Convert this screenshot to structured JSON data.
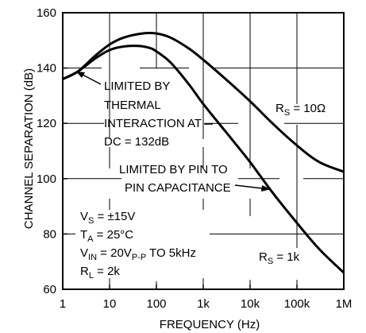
{
  "chart_data": {
    "type": "line",
    "xlabel": "FREQUENCY (Hz)",
    "ylabel": "CHANNEL SEPARATION (dB)",
    "x_scale": "log",
    "xlim": [
      1,
      1000000
    ],
    "ylim": [
      60,
      160
    ],
    "grid": true,
    "x_ticks": [
      {
        "value": 1,
        "label": "1"
      },
      {
        "value": 10,
        "label": "10"
      },
      {
        "value": 100,
        "label": "100"
      },
      {
        "value": 1000,
        "label": "1k"
      },
      {
        "value": 10000,
        "label": "10k"
      },
      {
        "value": 100000,
        "label": "100k"
      },
      {
        "value": 1000000,
        "label": "1M"
      }
    ],
    "y_ticks": [
      {
        "value": 60,
        "label": "60"
      },
      {
        "value": 80,
        "label": "80"
      },
      {
        "value": 100,
        "label": "100"
      },
      {
        "value": 120,
        "label": "120"
      },
      {
        "value": 140,
        "label": "140"
      },
      {
        "value": 160,
        "label": "160"
      }
    ],
    "series": [
      {
        "label_main": "R",
        "label_sub": "S",
        "label_tail": " = 10Ω",
        "points": [
          [
            1,
            136
          ],
          [
            2,
            138.5
          ],
          [
            3,
            141
          ],
          [
            5,
            144.5
          ],
          [
            10,
            148.5
          ],
          [
            20,
            151
          ],
          [
            50,
            152.5
          ],
          [
            100,
            152.5
          ],
          [
            200,
            151
          ],
          [
            500,
            147
          ],
          [
            1000,
            143
          ],
          [
            3000,
            136
          ],
          [
            10000,
            128
          ],
          [
            30000,
            120
          ],
          [
            100000,
            112
          ],
          [
            300000,
            106
          ],
          [
            1000000,
            102.5
          ]
        ]
      },
      {
        "label_main": "R",
        "label_sub": "S",
        "label_tail": " = 1k",
        "points": [
          [
            1,
            136
          ],
          [
            2,
            138.5
          ],
          [
            5,
            143.5
          ],
          [
            10,
            146.5
          ],
          [
            20,
            147.8
          ],
          [
            40,
            148
          ],
          [
            70,
            147.3
          ],
          [
            100,
            146
          ],
          [
            200,
            142
          ],
          [
            500,
            134
          ],
          [
            1000,
            127
          ],
          [
            3000,
            117
          ],
          [
            10000,
            106
          ],
          [
            30000,
            95
          ],
          [
            100000,
            84
          ],
          [
            300000,
            74.5
          ],
          [
            1000000,
            66
          ]
        ]
      }
    ],
    "annotations": {
      "thermal": [
        "LIMITED BY",
        "THERMAL",
        "INTERACTION AT",
        "DC = 132dB"
      ],
      "pin": [
        "LIMITED BY PIN TO",
        "PIN CAPACITANCE"
      ]
    },
    "conditions": [
      {
        "main": "V",
        "sub": "S",
        "tail": " = ±15V"
      },
      {
        "main": "T",
        "sub": "A",
        "tail": " = 25°C"
      },
      {
        "main": "V",
        "sub": "IN",
        "tail": " = 20V",
        "sub2": "P-P",
        "tail2": " TO 5kHz"
      },
      {
        "main": "R",
        "sub": "L",
        "tail": " = 2k"
      }
    ]
  }
}
